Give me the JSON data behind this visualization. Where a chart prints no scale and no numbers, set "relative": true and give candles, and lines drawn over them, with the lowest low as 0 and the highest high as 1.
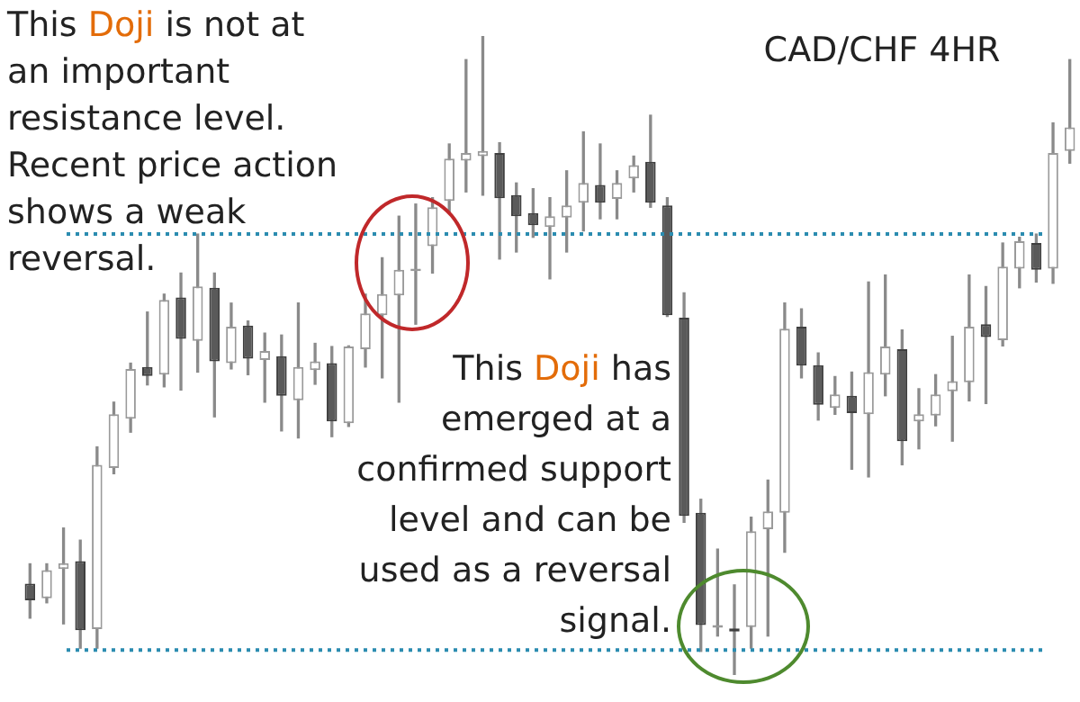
{
  "chart_data": {
    "type": "candlestick",
    "title": "CAD/CHF 4HR",
    "relative": true,
    "categories": [
      null,
      null,
      null,
      null,
      null,
      null,
      null,
      null,
      null,
      null,
      null,
      null,
      null,
      null,
      null,
      null,
      null,
      null,
      null,
      null,
      null,
      null,
      null,
      null,
      null,
      null,
      null,
      null,
      null,
      null,
      null,
      null,
      null,
      null,
      null,
      null,
      null,
      null,
      null,
      null,
      null,
      null,
      null,
      null,
      null,
      null,
      null,
      null,
      null,
      null,
      null,
      null,
      null,
      null,
      null,
      null,
      null,
      null,
      null,
      null,
      null,
      null,
      null
    ],
    "ohlc": [
      [
        0.143,
        0.174,
        0.089,
        0.117
      ],
      [
        0.12,
        0.174,
        0.113,
        0.164
      ],
      [
        0.166,
        0.23,
        0.08,
        0.175
      ],
      [
        0.178,
        0.211,
        0.042,
        0.07
      ],
      [
        0.072,
        0.357,
        0.042,
        0.329
      ],
      [
        0.324,
        0.427,
        0.315,
        0.408
      ],
      [
        0.401,
        0.488,
        0.38,
        0.479
      ],
      [
        0.482,
        0.568,
        0.454,
        0.468
      ],
      [
        0.47,
        0.596,
        0.451,
        0.587
      ],
      [
        0.591,
        0.629,
        0.446,
        0.526
      ],
      [
        0.523,
        0.69,
        0.474,
        0.608
      ],
      [
        0.606,
        0.629,
        0.404,
        0.491
      ],
      [
        0.488,
        0.582,
        0.479,
        0.545
      ],
      [
        0.547,
        0.554,
        0.47,
        0.495
      ],
      [
        0.493,
        0.535,
        0.427,
        0.507
      ],
      [
        0.499,
        0.532,
        0.382,
        0.437
      ],
      [
        0.43,
        0.582,
        0.371,
        0.482
      ],
      [
        0.477,
        0.519,
        0.455,
        0.491
      ],
      [
        0.488,
        0.514,
        0.373,
        0.397
      ],
      [
        0.394,
        0.515,
        0.389,
        0.514
      ],
      [
        0.51,
        0.596,
        0.482,
        0.566
      ],
      [
        0.563,
        0.653,
        0.465,
        0.596
      ],
      [
        0.594,
        0.718,
        0.427,
        0.634
      ],
      [
        0.632,
        0.737,
        0.549,
        0.636
      ],
      [
        0.671,
        0.747,
        0.629,
        0.732
      ],
      [
        0.742,
        0.831,
        0.723,
        0.808
      ],
      [
        0.805,
        0.963,
        0.756,
        0.817
      ],
      [
        0.812,
        1,
        0.751,
        0.82
      ],
      [
        0.817,
        0.833,
        0.651,
        0.746
      ],
      [
        0.751,
        0.77,
        0.662,
        0.718
      ],
      [
        0.723,
        0.761,
        0.685,
        0.704
      ],
      [
        0.701,
        0.747,
        0.62,
        0.718
      ],
      [
        0.716,
        0.789,
        0.662,
        0.735
      ],
      [
        0.739,
        0.85,
        0.695,
        0.77
      ],
      [
        0.767,
        0.831,
        0.714,
        0.739
      ],
      [
        0.745,
        0.789,
        0.714,
        0.77
      ],
      [
        0.777,
        0.812,
        0.756,
        0.798
      ],
      [
        0.803,
        0.876,
        0.732,
        0.739
      ],
      [
        0.735,
        0.747,
        0.561,
        0.563
      ],
      [
        0.559,
        0.598,
        0.239,
        0.249
      ],
      [
        0.254,
        0.275,
        0.037,
        0.078
      ],
      [
        0.074,
        0.197,
        0.061,
        0.078
      ],
      [
        0.073,
        0.141,
        0,
        0.068
      ],
      [
        0.075,
        0.247,
        0.042,
        0.225
      ],
      [
        0.228,
        0.305,
        0.061,
        0.256
      ],
      [
        0.254,
        0.582,
        0.192,
        0.542
      ],
      [
        0.545,
        0.573,
        0.465,
        0.484
      ],
      [
        0.485,
        0.504,
        0.399,
        0.423
      ],
      [
        0.418,
        0.467,
        0.408,
        0.439
      ],
      [
        0.437,
        0.474,
        0.322,
        0.41
      ],
      [
        0.408,
        0.615,
        0.31,
        0.474
      ],
      [
        0.47,
        0.626,
        0.437,
        0.514
      ],
      [
        0.51,
        0.54,
        0.329,
        0.366
      ],
      [
        0.397,
        0.448,
        0.354,
        0.408
      ],
      [
        0.406,
        0.47,
        0.39,
        0.439
      ],
      [
        0.444,
        0.53,
        0.366,
        0.46
      ],
      [
        0.458,
        0.626,
        0.429,
        0.545
      ],
      [
        0.549,
        0.608,
        0.425,
        0.529
      ],
      [
        0.524,
        0.676,
        0.515,
        0.639
      ],
      [
        0.636,
        0.685,
        0.606,
        0.679
      ],
      [
        0.676,
        0.69,
        0.615,
        0.634
      ],
      [
        0.636,
        0.864,
        0.613,
        0.817
      ],
      [
        0.82,
        0.963,
        0.801,
        0.857
      ]
    ],
    "ref_lines": [
      {
        "axis": "y",
        "value": 0.69,
        "color": "#2b8cb0",
        "line_style": "dotted"
      },
      {
        "axis": "y",
        "value": 0.039,
        "color": "#2b8cb0",
        "line_style": "dotted"
      }
    ],
    "annotations": [
      "This Doji is not at an important resistance level. Recent price action shows a weak reversal.",
      "This Doji has emerged at a confirmed support level and can be used as a reversal signal."
    ]
  }
}
